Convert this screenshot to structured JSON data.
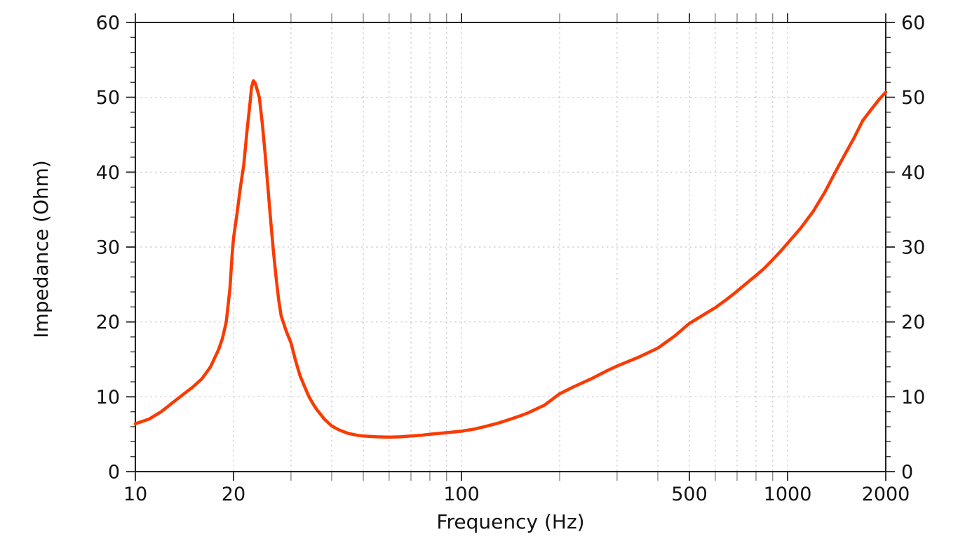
{
  "chart_data": {
    "type": "line",
    "title": "",
    "xlabel": "Frequency (Hz)",
    "ylabel": "Impedance (Ohm)",
    "x_scale": "log",
    "xlim": [
      10,
      2000
    ],
    "ylim": [
      0,
      60
    ],
    "grid": "dotted",
    "legend": "none",
    "y_major_ticks": [
      0,
      10,
      20,
      30,
      40,
      50,
      60
    ],
    "y_minor_step": 2,
    "x_all_ticks": [
      10,
      20,
      30,
      40,
      50,
      60,
      70,
      80,
      90,
      100,
      200,
      300,
      400,
      500,
      600,
      700,
      800,
      900,
      1000,
      2000
    ],
    "x_labeled_ticks": [
      10,
      20,
      100,
      500,
      1000,
      2000
    ],
    "colors": {
      "curve": "#FB3A00",
      "grid": "#c9c9c9",
      "frame": "#222222",
      "tick_major": "#3a3a3a",
      "tick_minor": "#8a8a8a",
      "text": "#111111"
    },
    "series": [
      {
        "name": "Impedance",
        "peak": {
          "frequency_hz": 23,
          "impedance_ohm": 52.2
        },
        "minimum": {
          "frequency_hz": 60,
          "impedance_ohm": 4.6
        },
        "points": [
          [
            10,
            6.4
          ],
          [
            11,
            7.0
          ],
          [
            12,
            8.0
          ],
          [
            13,
            9.2
          ],
          [
            14,
            10.3
          ],
          [
            15,
            11.3
          ],
          [
            16,
            12.4
          ],
          [
            17,
            14.0
          ],
          [
            18,
            16.3
          ],
          [
            18.5,
            17.8
          ],
          [
            19,
            20.0
          ],
          [
            19.5,
            24.5
          ],
          [
            19.8,
            29.0
          ],
          [
            20,
            31.2
          ],
          [
            20.5,
            34.5
          ],
          [
            21,
            38.0
          ],
          [
            21.5,
            41.0
          ],
          [
            22,
            45.5
          ],
          [
            22.5,
            49.5
          ],
          [
            22.7,
            51.3
          ],
          [
            23,
            52.2
          ],
          [
            23.3,
            51.9
          ],
          [
            23.5,
            51.4
          ],
          [
            24,
            50.0
          ],
          [
            24.5,
            46.5
          ],
          [
            25,
            42.5
          ],
          [
            25.5,
            38.0
          ],
          [
            26,
            33.5
          ],
          [
            26.5,
            29.5
          ],
          [
            27,
            26.0
          ],
          [
            27.5,
            23.0
          ],
          [
            28,
            20.8
          ],
          [
            29,
            18.8
          ],
          [
            30,
            17.2
          ],
          [
            31,
            14.8
          ],
          [
            32,
            12.8
          ],
          [
            33,
            11.4
          ],
          [
            34,
            10.1
          ],
          [
            35,
            9.1
          ],
          [
            36,
            8.3
          ],
          [
            38,
            7.0
          ],
          [
            40,
            6.1
          ],
          [
            42,
            5.6
          ],
          [
            45,
            5.1
          ],
          [
            48,
            4.85
          ],
          [
            50,
            4.75
          ],
          [
            55,
            4.65
          ],
          [
            60,
            4.6
          ],
          [
            65,
            4.65
          ],
          [
            70,
            4.75
          ],
          [
            75,
            4.85
          ],
          [
            80,
            5.0
          ],
          [
            90,
            5.2
          ],
          [
            100,
            5.4
          ],
          [
            110,
            5.7
          ],
          [
            120,
            6.1
          ],
          [
            130,
            6.5
          ],
          [
            140,
            6.95
          ],
          [
            150,
            7.4
          ],
          [
            160,
            7.85
          ],
          [
            180,
            8.9
          ],
          [
            200,
            10.4
          ],
          [
            220,
            11.3
          ],
          [
            250,
            12.4
          ],
          [
            280,
            13.5
          ],
          [
            300,
            14.1
          ],
          [
            350,
            15.3
          ],
          [
            400,
            16.5
          ],
          [
            450,
            18.1
          ],
          [
            500,
            19.8
          ],
          [
            550,
            20.9
          ],
          [
            600,
            21.9
          ],
          [
            650,
            23.0
          ],
          [
            700,
            24.1
          ],
          [
            750,
            25.2
          ],
          [
            800,
            26.2
          ],
          [
            850,
            27.2
          ],
          [
            900,
            28.3
          ],
          [
            950,
            29.4
          ],
          [
            1000,
            30.5
          ],
          [
            1100,
            32.6
          ],
          [
            1200,
            34.8
          ],
          [
            1300,
            37.3
          ],
          [
            1400,
            40.0
          ],
          [
            1500,
            42.4
          ],
          [
            1600,
            44.6
          ],
          [
            1700,
            46.9
          ],
          [
            1800,
            48.3
          ],
          [
            1900,
            49.6
          ],
          [
            2000,
            50.7
          ]
        ]
      }
    ]
  }
}
